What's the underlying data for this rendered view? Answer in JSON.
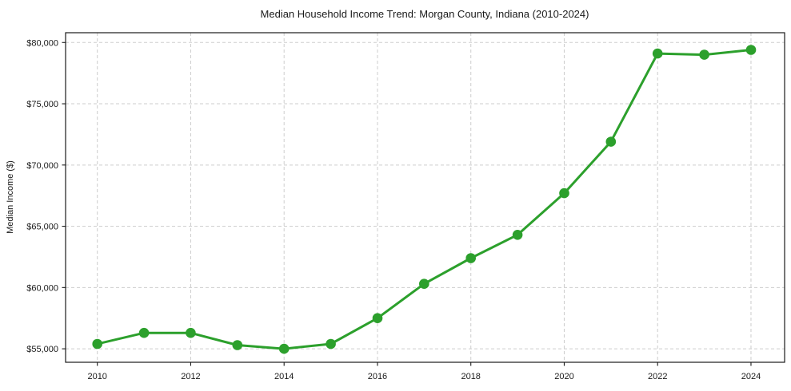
{
  "figure": {
    "background": "#ffffff"
  },
  "chart_data": {
    "type": "line",
    "title": "Median Household Income Trend: Morgan County, Indiana (2010-2024)",
    "xlabel": "",
    "ylabel": "Median Income ($)",
    "x": [
      2010,
      2011,
      2012,
      2013,
      2014,
      2015,
      2016,
      2017,
      2018,
      2019,
      2020,
      2021,
      2022,
      2023,
      2024
    ],
    "y": [
      55400,
      56300,
      56300,
      55300,
      55000,
      55400,
      57500,
      60300,
      62400,
      64300,
      67700,
      71900,
      79100,
      79000,
      79400
    ],
    "series_name": "Median Household Income",
    "xlim": [
      2009.32,
      2024.72
    ],
    "ylim": [
      53900,
      80800
    ],
    "x_ticks": [
      2010,
      2012,
      2014,
      2016,
      2018,
      2020,
      2022,
      2024
    ],
    "x_tick_labels": [
      "2010",
      "2012",
      "2014",
      "2016",
      "2018",
      "2020",
      "2022",
      "2024"
    ],
    "y_ticks": [
      55000,
      60000,
      65000,
      70000,
      75000,
      80000
    ],
    "y_tick_labels": [
      "$55,000",
      "$60,000",
      "$65,000",
      "$70,000",
      "$75,000",
      "$80,000"
    ],
    "grid": true,
    "legend": "none",
    "marker": "circle",
    "colors": {
      "line": "#2ca02c",
      "marker": "#2ca02c",
      "grid": "#cdcdcd",
      "frame": "#1a1a1a",
      "text": "#1a1a1a"
    }
  }
}
